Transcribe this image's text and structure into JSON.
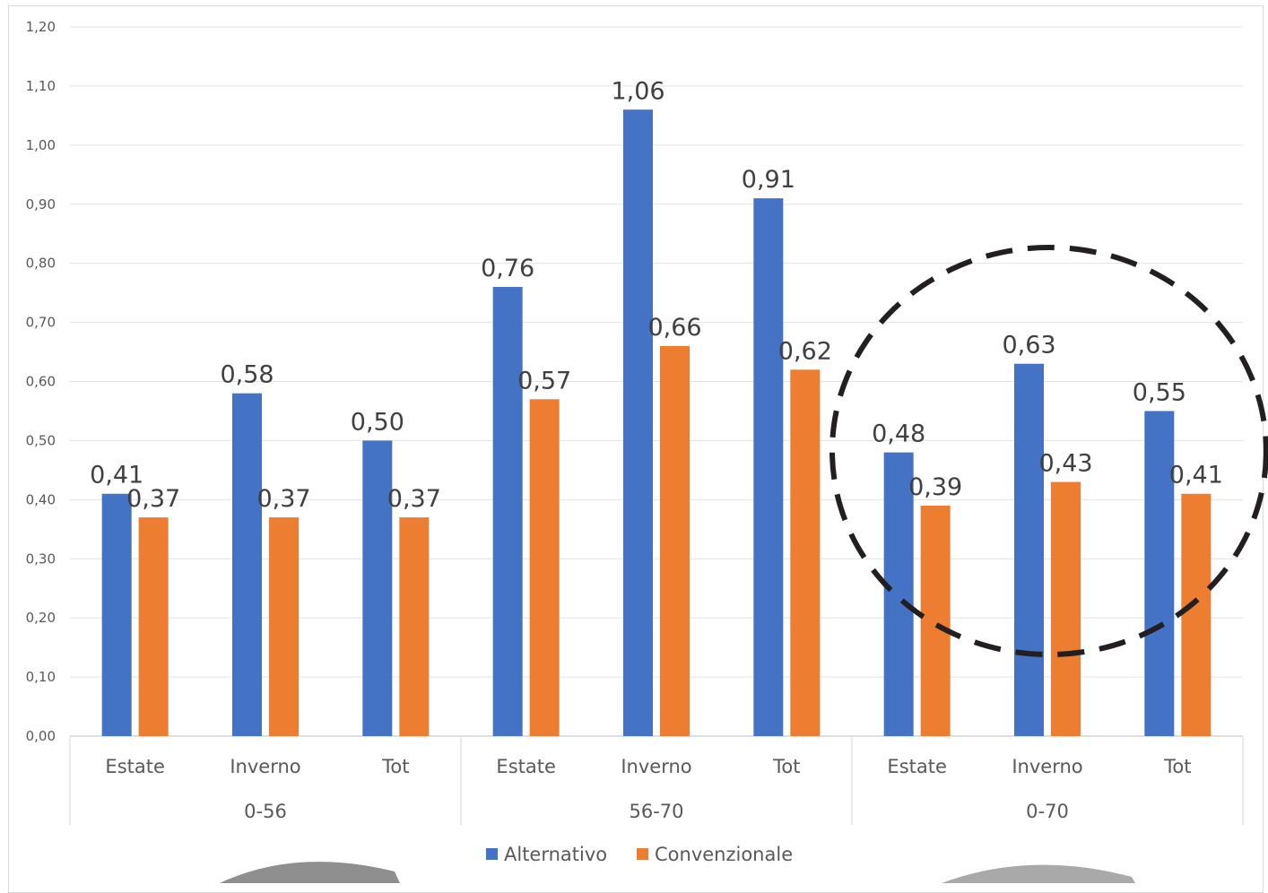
{
  "chart_data": {
    "type": "bar",
    "groups": [
      "0-56",
      "56-70",
      "0-70"
    ],
    "categories": [
      "Estate",
      "Inverno",
      "Tot",
      "Estate",
      "Inverno",
      "Tot",
      "Estate",
      "Inverno",
      "Tot"
    ],
    "series": [
      {
        "name": "Alternativo",
        "color": "#4472c4",
        "values": [
          0.41,
          0.58,
          0.5,
          0.76,
          1.06,
          0.91,
          0.48,
          0.63,
          0.55
        ],
        "labels": [
          "0,41",
          "0,58",
          "0,50",
          "0,76",
          "1,06",
          "0,91",
          "0,48",
          "0,63",
          "0,55"
        ]
      },
      {
        "name": "Convenzionale",
        "color": "#ed7d31",
        "values": [
          0.37,
          0.37,
          0.37,
          0.57,
          0.66,
          0.62,
          0.39,
          0.43,
          0.41
        ],
        "labels": [
          "0,37",
          "0,37",
          "0,37",
          "0,57",
          "0,66",
          "0,62",
          "0,39",
          "0,43",
          "0,41"
        ]
      }
    ],
    "ylim": [
      0,
      1.2
    ],
    "yticks": [
      "0,00",
      "0,10",
      "0,20",
      "0,30",
      "0,40",
      "0,50",
      "0,60",
      "0,70",
      "0,80",
      "0,90",
      "1,00",
      "1,10",
      "1,20"
    ],
    "grid": true,
    "legend_position": "bottom",
    "annotation": "dashed circle highlighting group 0-70"
  }
}
